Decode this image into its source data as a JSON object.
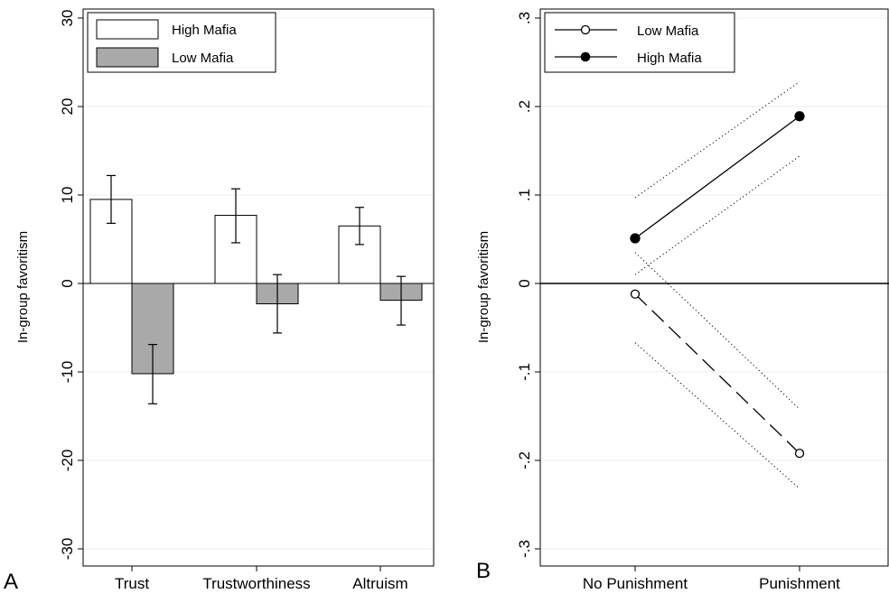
{
  "chart_data": [
    {
      "panel_label": "A",
      "type": "bar",
      "ylabel": "In-group favoritism",
      "ylim": [
        -30,
        30
      ],
      "yticks": [
        "-30",
        "-20",
        "-10",
        "0",
        "10",
        "20",
        "30"
      ],
      "categories": [
        "Trust",
        "Trustworthiness",
        "Altruism"
      ],
      "legend_position": "top-left",
      "grid": true,
      "series": [
        {
          "name": "High Mafia",
          "color": "#ffffff",
          "values": [
            9.5,
            7.7,
            6.5
          ],
          "err_low": [
            6.8,
            4.6,
            4.4
          ],
          "err_high": [
            12.2,
            10.7,
            8.6
          ]
        },
        {
          "name": "Low Mafia",
          "color": "#a9a9a9",
          "values": [
            -10.2,
            -2.3,
            -1.9
          ],
          "err_low": [
            -13.6,
            -5.6,
            -4.7
          ],
          "err_high": [
            -6.9,
            1.0,
            0.8
          ]
        }
      ]
    },
    {
      "panel_label": "B",
      "type": "line",
      "ylabel": "In-group favoritism",
      "ylim": [
        -0.3,
        0.3
      ],
      "yticks": [
        "-.3",
        "-.2",
        "-.1",
        "0",
        ".1",
        ".2",
        ".3"
      ],
      "categories": [
        "No Punishment",
        "Punishment"
      ],
      "legend_position": "top-left",
      "grid": true,
      "series": [
        {
          "name": "Low Mafia",
          "marker": "hollow-circle",
          "line": "dashed",
          "values": [
            -0.012,
            -0.192
          ],
          "ci_low": [
            -0.067,
            -0.232
          ],
          "ci_high": [
            0.035,
            -0.142
          ]
        },
        {
          "name": "High Mafia",
          "marker": "filled-circle",
          "line": "solid",
          "values": [
            0.051,
            0.189
          ],
          "ci_low": [
            0.01,
            0.144
          ],
          "ci_high": [
            0.097,
            0.228
          ]
        }
      ]
    }
  ]
}
